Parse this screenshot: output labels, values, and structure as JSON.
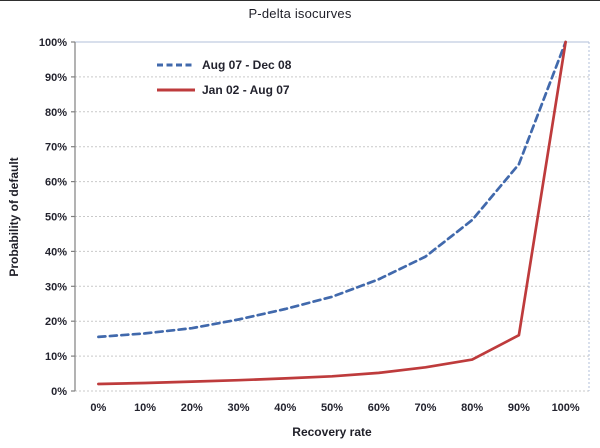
{
  "chart_data": {
    "type": "line",
    "title": "P-delta isocurves",
    "xlabel": "Recovery rate",
    "ylabel": "Probability of default",
    "x_categories": [
      "0%",
      "10%",
      "20%",
      "30%",
      "40%",
      "50%",
      "60%",
      "70%",
      "80%",
      "90%",
      "100%"
    ],
    "ytick_labels": [
      "0%",
      "10%",
      "20%",
      "30%",
      "40%",
      "50%",
      "60%",
      "70%",
      "80%",
      "90%",
      "100%"
    ],
    "ylim": [
      0,
      100
    ],
    "grid": "horizontal-dotted",
    "legend_position": "inside-top-left",
    "series": [
      {
        "name": "Aug 07 - Dec 08",
        "color": "#4169AC",
        "style": "dashed",
        "values": [
          15.5,
          16.5,
          18,
          20.5,
          23.5,
          27,
          32,
          38.5,
          49,
          65,
          100
        ]
      },
      {
        "name": "Jan 02 - Aug 07",
        "color": "#BE3B3C",
        "style": "solid",
        "values": [
          2,
          2.3,
          2.7,
          3.1,
          3.6,
          4.2,
          5.2,
          6.8,
          9,
          16,
          100
        ]
      }
    ],
    "colors": {
      "gridline": "#c9c9c9",
      "axis": "#808080",
      "plot_border": "#b2bfd8",
      "text": "#23232e"
    }
  }
}
